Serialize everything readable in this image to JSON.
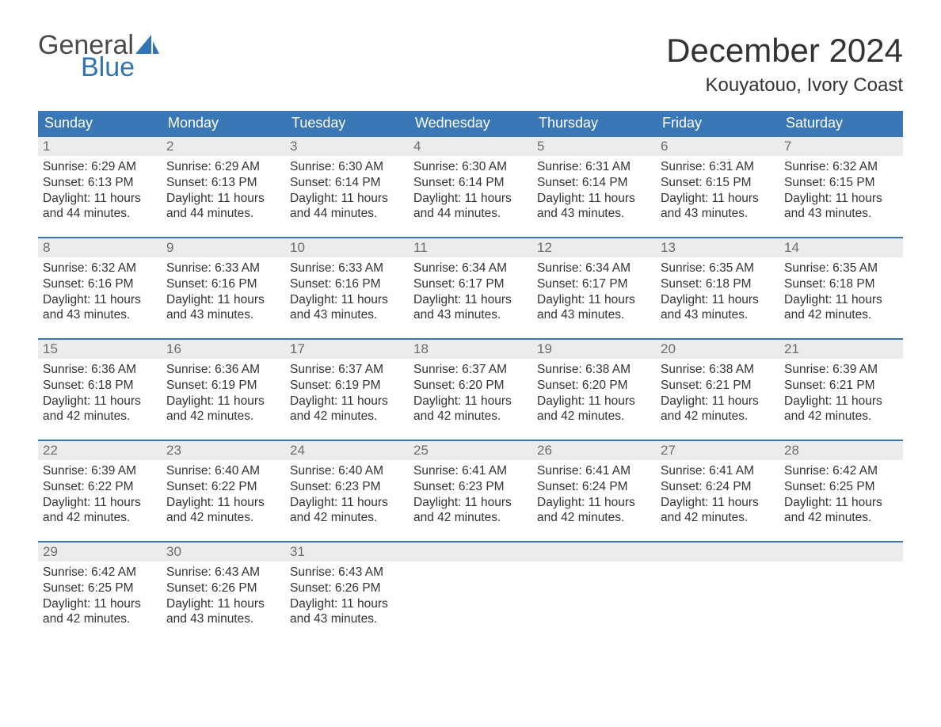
{
  "logo": {
    "word1": "General",
    "word2": "Blue"
  },
  "title": "December 2024",
  "location": "Kouyatouo, Ivory Coast",
  "colors": {
    "header_bg": "#3a77b7",
    "header_text": "#ffffff",
    "row_border": "#3a77b7",
    "daynum_bg": "#ececec",
    "daynum_text": "#6d6d6d",
    "body_text": "#333333",
    "logo_gray": "#4a4a4a",
    "logo_blue": "#2f74b5",
    "background": "#ffffff"
  },
  "typography": {
    "title_fontsize": 42,
    "location_fontsize": 24,
    "header_fontsize": 18,
    "daynum_fontsize": 17,
    "body_fontsize": 15.5,
    "logo_fontsize": 34
  },
  "day_headers": [
    "Sunday",
    "Monday",
    "Tuesday",
    "Wednesday",
    "Thursday",
    "Friday",
    "Saturday"
  ],
  "weeks": [
    [
      {
        "n": "1",
        "sr": "Sunrise: 6:29 AM",
        "ss": "Sunset: 6:13 PM",
        "d1": "Daylight: 11 hours",
        "d2": "and 44 minutes."
      },
      {
        "n": "2",
        "sr": "Sunrise: 6:29 AM",
        "ss": "Sunset: 6:13 PM",
        "d1": "Daylight: 11 hours",
        "d2": "and 44 minutes."
      },
      {
        "n": "3",
        "sr": "Sunrise: 6:30 AM",
        "ss": "Sunset: 6:14 PM",
        "d1": "Daylight: 11 hours",
        "d2": "and 44 minutes."
      },
      {
        "n": "4",
        "sr": "Sunrise: 6:30 AM",
        "ss": "Sunset: 6:14 PM",
        "d1": "Daylight: 11 hours",
        "d2": "and 44 minutes."
      },
      {
        "n": "5",
        "sr": "Sunrise: 6:31 AM",
        "ss": "Sunset: 6:14 PM",
        "d1": "Daylight: 11 hours",
        "d2": "and 43 minutes."
      },
      {
        "n": "6",
        "sr": "Sunrise: 6:31 AM",
        "ss": "Sunset: 6:15 PM",
        "d1": "Daylight: 11 hours",
        "d2": "and 43 minutes."
      },
      {
        "n": "7",
        "sr": "Sunrise: 6:32 AM",
        "ss": "Sunset: 6:15 PM",
        "d1": "Daylight: 11 hours",
        "d2": "and 43 minutes."
      }
    ],
    [
      {
        "n": "8",
        "sr": "Sunrise: 6:32 AM",
        "ss": "Sunset: 6:16 PM",
        "d1": "Daylight: 11 hours",
        "d2": "and 43 minutes."
      },
      {
        "n": "9",
        "sr": "Sunrise: 6:33 AM",
        "ss": "Sunset: 6:16 PM",
        "d1": "Daylight: 11 hours",
        "d2": "and 43 minutes."
      },
      {
        "n": "10",
        "sr": "Sunrise: 6:33 AM",
        "ss": "Sunset: 6:16 PM",
        "d1": "Daylight: 11 hours",
        "d2": "and 43 minutes."
      },
      {
        "n": "11",
        "sr": "Sunrise: 6:34 AM",
        "ss": "Sunset: 6:17 PM",
        "d1": "Daylight: 11 hours",
        "d2": "and 43 minutes."
      },
      {
        "n": "12",
        "sr": "Sunrise: 6:34 AM",
        "ss": "Sunset: 6:17 PM",
        "d1": "Daylight: 11 hours",
        "d2": "and 43 minutes."
      },
      {
        "n": "13",
        "sr": "Sunrise: 6:35 AM",
        "ss": "Sunset: 6:18 PM",
        "d1": "Daylight: 11 hours",
        "d2": "and 43 minutes."
      },
      {
        "n": "14",
        "sr": "Sunrise: 6:35 AM",
        "ss": "Sunset: 6:18 PM",
        "d1": "Daylight: 11 hours",
        "d2": "and 42 minutes."
      }
    ],
    [
      {
        "n": "15",
        "sr": "Sunrise: 6:36 AM",
        "ss": "Sunset: 6:18 PM",
        "d1": "Daylight: 11 hours",
        "d2": "and 42 minutes."
      },
      {
        "n": "16",
        "sr": "Sunrise: 6:36 AM",
        "ss": "Sunset: 6:19 PM",
        "d1": "Daylight: 11 hours",
        "d2": "and 42 minutes."
      },
      {
        "n": "17",
        "sr": "Sunrise: 6:37 AM",
        "ss": "Sunset: 6:19 PM",
        "d1": "Daylight: 11 hours",
        "d2": "and 42 minutes."
      },
      {
        "n": "18",
        "sr": "Sunrise: 6:37 AM",
        "ss": "Sunset: 6:20 PM",
        "d1": "Daylight: 11 hours",
        "d2": "and 42 minutes."
      },
      {
        "n": "19",
        "sr": "Sunrise: 6:38 AM",
        "ss": "Sunset: 6:20 PM",
        "d1": "Daylight: 11 hours",
        "d2": "and 42 minutes."
      },
      {
        "n": "20",
        "sr": "Sunrise: 6:38 AM",
        "ss": "Sunset: 6:21 PM",
        "d1": "Daylight: 11 hours",
        "d2": "and 42 minutes."
      },
      {
        "n": "21",
        "sr": "Sunrise: 6:39 AM",
        "ss": "Sunset: 6:21 PM",
        "d1": "Daylight: 11 hours",
        "d2": "and 42 minutes."
      }
    ],
    [
      {
        "n": "22",
        "sr": "Sunrise: 6:39 AM",
        "ss": "Sunset: 6:22 PM",
        "d1": "Daylight: 11 hours",
        "d2": "and 42 minutes."
      },
      {
        "n": "23",
        "sr": "Sunrise: 6:40 AM",
        "ss": "Sunset: 6:22 PM",
        "d1": "Daylight: 11 hours",
        "d2": "and 42 minutes."
      },
      {
        "n": "24",
        "sr": "Sunrise: 6:40 AM",
        "ss": "Sunset: 6:23 PM",
        "d1": "Daylight: 11 hours",
        "d2": "and 42 minutes."
      },
      {
        "n": "25",
        "sr": "Sunrise: 6:41 AM",
        "ss": "Sunset: 6:23 PM",
        "d1": "Daylight: 11 hours",
        "d2": "and 42 minutes."
      },
      {
        "n": "26",
        "sr": "Sunrise: 6:41 AM",
        "ss": "Sunset: 6:24 PM",
        "d1": "Daylight: 11 hours",
        "d2": "and 42 minutes."
      },
      {
        "n": "27",
        "sr": "Sunrise: 6:41 AM",
        "ss": "Sunset: 6:24 PM",
        "d1": "Daylight: 11 hours",
        "d2": "and 42 minutes."
      },
      {
        "n": "28",
        "sr": "Sunrise: 6:42 AM",
        "ss": "Sunset: 6:25 PM",
        "d1": "Daylight: 11 hours",
        "d2": "and 42 minutes."
      }
    ],
    [
      {
        "n": "29",
        "sr": "Sunrise: 6:42 AM",
        "ss": "Sunset: 6:25 PM",
        "d1": "Daylight: 11 hours",
        "d2": "and 42 minutes."
      },
      {
        "n": "30",
        "sr": "Sunrise: 6:43 AM",
        "ss": "Sunset: 6:26 PM",
        "d1": "Daylight: 11 hours",
        "d2": "and 43 minutes."
      },
      {
        "n": "31",
        "sr": "Sunrise: 6:43 AM",
        "ss": "Sunset: 6:26 PM",
        "d1": "Daylight: 11 hours",
        "d2": "and 43 minutes."
      },
      null,
      null,
      null,
      null
    ]
  ]
}
